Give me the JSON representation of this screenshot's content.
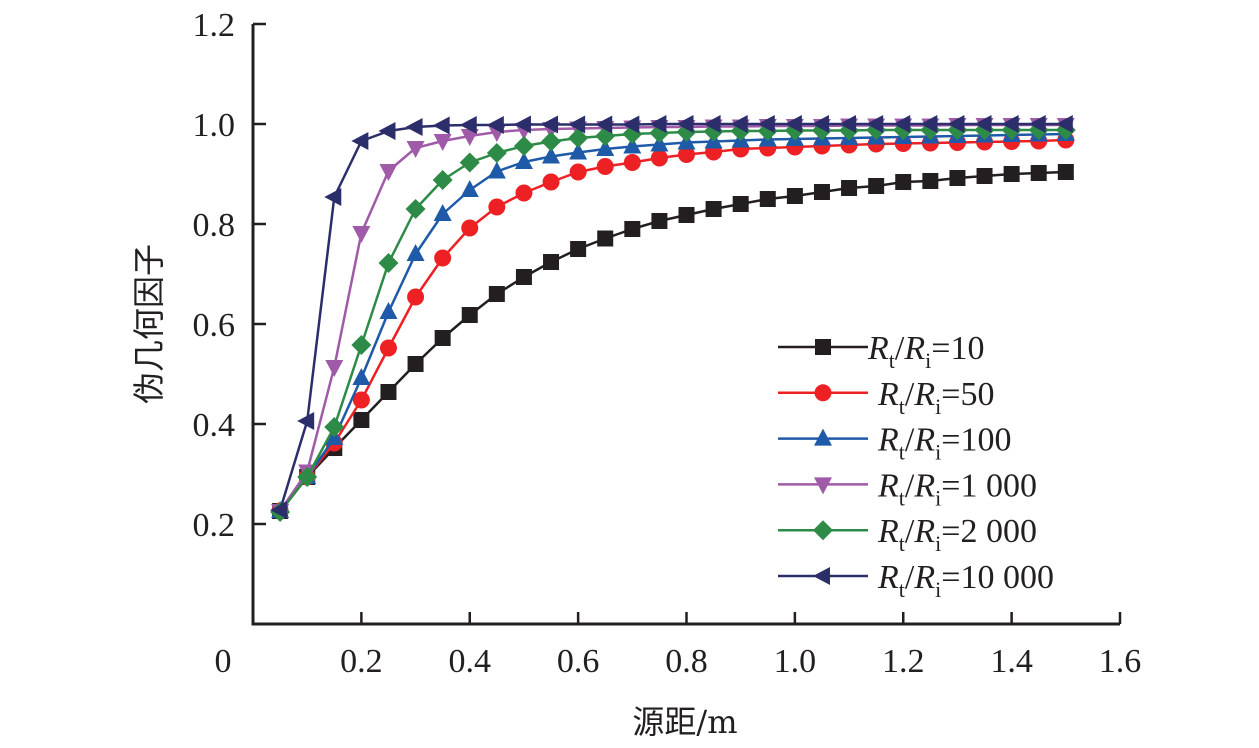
{
  "chart_data": {
    "type": "line",
    "title": "",
    "xlabel": "源距/m",
    "ylabel": "伪几何因子",
    "xlim": [
      0,
      1.6
    ],
    "ylim": [
      0,
      1.2
    ],
    "x_ticks": [
      0.2,
      0.4,
      0.6,
      0.8,
      1.0,
      1.2,
      1.4,
      1.6
    ],
    "x_tick_labels": [
      "0.2",
      "0.4",
      "0.6",
      "0.8",
      "1.0",
      "1.2",
      "1.4",
      "1.6"
    ],
    "y_ticks": [
      0.2,
      0.4,
      0.6,
      0.8,
      1.0,
      1.2
    ],
    "y_tick_labels": [
      "0.2",
      "0.4",
      "0.6",
      "0.8",
      "1.0",
      "1.2"
    ],
    "origin_label": "0",
    "grid": false,
    "legend_position": "center-right",
    "x": [
      0.05,
      0.1,
      0.15,
      0.2,
      0.25,
      0.3,
      0.35,
      0.4,
      0.45,
      0.5,
      0.55,
      0.6,
      0.65,
      0.7,
      0.75,
      0.8,
      0.85,
      0.9,
      0.95,
      1.0,
      1.05,
      1.1,
      1.15,
      1.2,
      1.25,
      1.3,
      1.35,
      1.4,
      1.45,
      1.5
    ],
    "series": [
      {
        "name": "Rt/Ri=10",
        "legend": {
          "r1": "R",
          "s1": "t",
          "slash": "/",
          "r2": "R",
          "s2": "i",
          "value": "=10"
        },
        "color": "#231f20",
        "marker": "square",
        "values": [
          0.226,
          0.294,
          0.352,
          0.408,
          0.464,
          0.52,
          0.572,
          0.618,
          0.66,
          0.694,
          0.724,
          0.75,
          0.771,
          0.79,
          0.806,
          0.818,
          0.83,
          0.84,
          0.85,
          0.856,
          0.864,
          0.872,
          0.876,
          0.884,
          0.886,
          0.892,
          0.896,
          0.9,
          0.902,
          0.904
        ]
      },
      {
        "name": "Rt/Ri=50",
        "legend": {
          "r1": "R",
          "s1": "t",
          "slash": "/",
          "r2": "R",
          "s2": "i",
          "value": "=50"
        },
        "color": "#ed2024",
        "marker": "circle",
        "values": [
          0.226,
          0.294,
          0.362,
          0.448,
          0.552,
          0.654,
          0.732,
          0.792,
          0.834,
          0.862,
          0.884,
          0.904,
          0.915,
          0.923,
          0.932,
          0.939,
          0.944,
          0.95,
          0.952,
          0.954,
          0.956,
          0.958,
          0.96,
          0.961,
          0.962,
          0.963,
          0.964,
          0.965,
          0.966,
          0.968
        ]
      },
      {
        "name": "Rt/Ri=100",
        "legend": {
          "r1": "R",
          "s1": "t",
          "slash": "/",
          "r2": "R",
          "s2": "i",
          "value": "=100"
        },
        "color": "#1f5aa8",
        "marker": "triangle-up",
        "values": [
          0.226,
          0.294,
          0.372,
          0.492,
          0.624,
          0.74,
          0.82,
          0.868,
          0.905,
          0.924,
          0.935,
          0.943,
          0.95,
          0.955,
          0.959,
          0.963,
          0.965,
          0.967,
          0.969,
          0.97,
          0.971,
          0.972,
          0.973,
          0.974,
          0.975,
          0.976,
          0.977,
          0.978,
          0.979,
          0.98
        ]
      },
      {
        "name": "Rt/Ri=1 000",
        "legend": {
          "r1": "R",
          "s1": "t",
          "slash": "/",
          "r2": "R",
          "s2": "i",
          "value": "=1 000"
        },
        "color": "#a05ba8",
        "marker": "triangle-down",
        "values": [
          0.226,
          0.305,
          0.514,
          0.782,
          0.906,
          0.952,
          0.966,
          0.976,
          0.984,
          0.988,
          0.99,
          0.991,
          0.992,
          0.993,
          0.994,
          0.994,
          0.995,
          0.995,
          0.996,
          0.996,
          0.996,
          0.997,
          0.997,
          0.997,
          0.997,
          0.998,
          0.998,
          0.998,
          0.998,
          0.998
        ]
      },
      {
        "name": "Rt/Ri=2 000",
        "legend": {
          "r1": "R",
          "s1": "t",
          "slash": "/",
          "r2": "R",
          "s2": "i",
          "value": "=2 000"
        },
        "color": "#2e8b47",
        "marker": "diamond",
        "values": [
          0.224,
          0.294,
          0.394,
          0.558,
          0.722,
          0.83,
          0.888,
          0.923,
          0.942,
          0.956,
          0.965,
          0.972,
          0.976,
          0.98,
          0.982,
          0.984,
          0.985,
          0.986,
          0.986,
          0.987,
          0.987,
          0.987,
          0.988,
          0.988,
          0.988,
          0.988,
          0.988,
          0.988,
          0.988,
          0.988
        ]
      },
      {
        "name": "Rt/Ri=10 000",
        "legend": {
          "r1": "R",
          "s1": "t",
          "slash": "/",
          "r2": "R",
          "s2": "i",
          "value": "=10 000"
        },
        "color": "#2b2e6b",
        "marker": "triangle-left",
        "values": [
          0.228,
          0.406,
          0.854,
          0.966,
          0.986,
          0.994,
          0.997,
          0.998,
          0.998,
          0.999,
          0.999,
          0.999,
          0.999,
          0.999,
          1.0,
          1.0,
          1.0,
          1.0,
          1.0,
          1.0,
          1.0,
          1.0,
          1.0,
          1.0,
          1.0,
          1.0,
          1.0,
          1.0,
          1.0,
          1.0
        ]
      }
    ]
  }
}
